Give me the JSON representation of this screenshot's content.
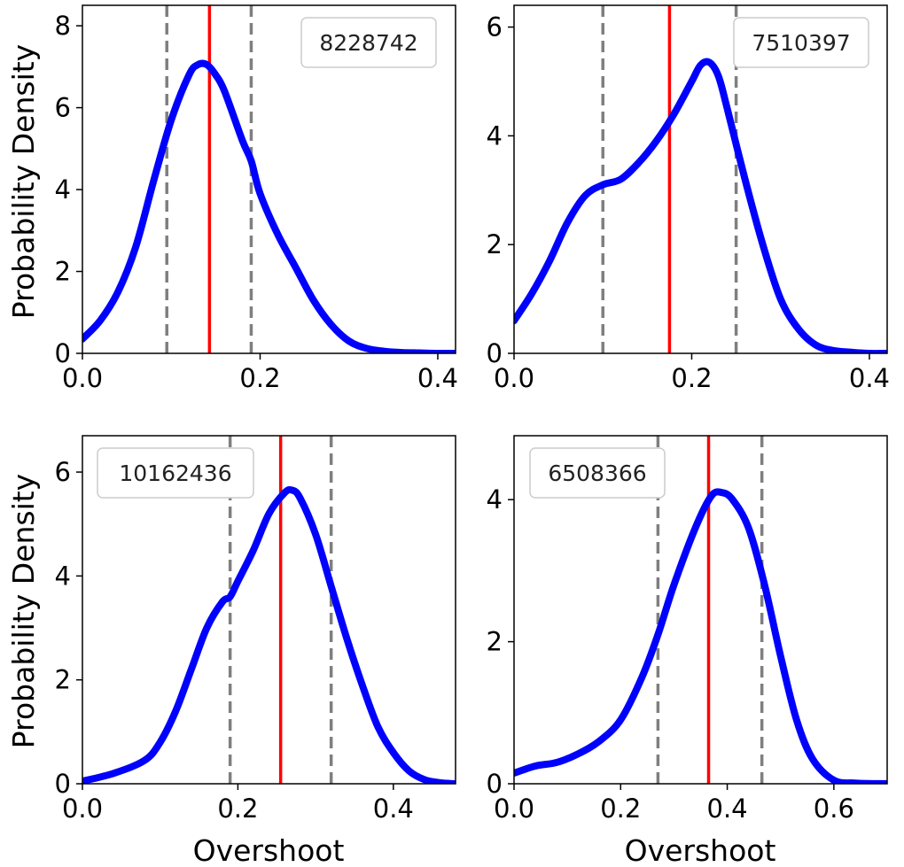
{
  "chart_data": [
    {
      "type": "line",
      "label": "8228742",
      "xlabel": "",
      "ylabel": "Probability Density",
      "xlim": [
        0.0,
        0.42
      ],
      "ylim": [
        0,
        8.5
      ],
      "xticks": [
        0.0,
        0.2,
        0.4
      ],
      "xtick_labels": [
        "0.0",
        "0.2",
        "0.4"
      ],
      "yticks": [
        0,
        2,
        4,
        6,
        8
      ],
      "ytick_labels": [
        "0",
        "2",
        "4",
        "6",
        "8"
      ],
      "legend_position": "top-right",
      "vlines": {
        "red": 0.143,
        "dashed": [
          0.095,
          0.19
        ]
      },
      "series": [
        {
          "name": "density",
          "color": "#0000ff",
          "x": [
            0.0,
            0.02,
            0.04,
            0.06,
            0.08,
            0.1,
            0.12,
            0.13,
            0.14,
            0.15,
            0.16,
            0.18,
            0.19,
            0.2,
            0.22,
            0.24,
            0.26,
            0.28,
            0.3,
            0.32,
            0.34,
            0.36,
            0.38,
            0.4,
            0.42
          ],
          "y": [
            0.35,
            0.8,
            1.5,
            2.6,
            4.2,
            5.7,
            6.8,
            7.05,
            7.05,
            6.8,
            6.4,
            5.2,
            4.7,
            3.9,
            2.9,
            2.1,
            1.3,
            0.7,
            0.3,
            0.12,
            0.05,
            0.02,
            0.01,
            0.0,
            0.0
          ]
        }
      ]
    },
    {
      "type": "line",
      "label": "7510397",
      "xlabel": "",
      "ylabel": "",
      "xlim": [
        0.0,
        0.42
      ],
      "ylim": [
        0,
        6.4
      ],
      "xticks": [
        0.0,
        0.2,
        0.4
      ],
      "xtick_labels": [
        "0.0",
        "0.2",
        "0.4"
      ],
      "yticks": [
        0,
        2,
        4,
        6
      ],
      "ytick_labels": [
        "0",
        "2",
        "4",
        "6"
      ],
      "legend_position": "top-right",
      "vlines": {
        "red": 0.175,
        "dashed": [
          0.1,
          0.25
        ]
      },
      "series": [
        {
          "name": "density",
          "color": "#0000ff",
          "x": [
            0.0,
            0.02,
            0.04,
            0.06,
            0.08,
            0.1,
            0.12,
            0.14,
            0.16,
            0.18,
            0.2,
            0.21,
            0.22,
            0.23,
            0.24,
            0.26,
            0.28,
            0.3,
            0.32,
            0.34,
            0.36,
            0.38,
            0.4,
            0.42
          ],
          "y": [
            0.6,
            1.1,
            1.7,
            2.4,
            2.9,
            3.1,
            3.2,
            3.5,
            3.9,
            4.4,
            5.0,
            5.3,
            5.35,
            5.1,
            4.5,
            3.2,
            2.0,
            1.0,
            0.45,
            0.15,
            0.05,
            0.02,
            0.0,
            0.0
          ]
        }
      ]
    },
    {
      "type": "line",
      "label": "10162436",
      "xlabel": "Overshoot",
      "ylabel": "Probability Density",
      "xlim": [
        0.0,
        0.48
      ],
      "ylim": [
        0,
        6.7
      ],
      "xticks": [
        0.0,
        0.2,
        0.4
      ],
      "xtick_labels": [
        "0.0",
        "0.2",
        "0.4"
      ],
      "yticks": [
        0,
        2,
        4,
        6
      ],
      "ytick_labels": [
        "0",
        "2",
        "4",
        "6"
      ],
      "legend_position": "top-left",
      "vlines": {
        "red": 0.255,
        "dashed": [
          0.19,
          0.32
        ]
      },
      "series": [
        {
          "name": "density",
          "color": "#0000ff",
          "x": [
            0.0,
            0.04,
            0.08,
            0.1,
            0.12,
            0.14,
            0.16,
            0.18,
            0.19,
            0.2,
            0.22,
            0.24,
            0.26,
            0.27,
            0.28,
            0.3,
            0.32,
            0.34,
            0.36,
            0.38,
            0.4,
            0.42,
            0.44,
            0.46,
            0.48
          ],
          "y": [
            0.05,
            0.2,
            0.45,
            0.8,
            1.4,
            2.2,
            3.0,
            3.5,
            3.6,
            3.9,
            4.5,
            5.2,
            5.6,
            5.65,
            5.5,
            4.8,
            3.8,
            2.8,
            1.9,
            1.1,
            0.6,
            0.25,
            0.08,
            0.02,
            0.0
          ]
        }
      ]
    },
    {
      "type": "line",
      "label": "6508366",
      "xlabel": "Overshoot",
      "ylabel": "",
      "xlim": [
        0.0,
        0.7
      ],
      "ylim": [
        0,
        4.9
      ],
      "xticks": [
        0.0,
        0.2,
        0.4,
        0.6
      ],
      "xtick_labels": [
        "0.0",
        "0.2",
        "0.4",
        "0.6"
      ],
      "yticks": [
        0,
        2,
        4
      ],
      "ytick_labels": [
        "0",
        "2",
        "4"
      ],
      "legend_position": "top-left",
      "vlines": {
        "red": 0.365,
        "dashed": [
          0.27,
          0.465
        ]
      },
      "series": [
        {
          "name": "density",
          "color": "#0000ff",
          "x": [
            0.0,
            0.04,
            0.08,
            0.12,
            0.16,
            0.2,
            0.24,
            0.27,
            0.3,
            0.34,
            0.37,
            0.39,
            0.41,
            0.44,
            0.47,
            0.5,
            0.53,
            0.56,
            0.6,
            0.64,
            0.7
          ],
          "y": [
            0.15,
            0.25,
            0.3,
            0.42,
            0.6,
            0.9,
            1.5,
            2.1,
            2.8,
            3.6,
            4.05,
            4.1,
            4.0,
            3.6,
            2.8,
            1.8,
            0.9,
            0.35,
            0.05,
            0.01,
            0.0
          ]
        }
      ]
    }
  ],
  "colors": {
    "line": "#0000ff",
    "mean_line": "#ff0000",
    "dashed_line": "#7f7f7f",
    "legend_border": "#cccccc"
  }
}
